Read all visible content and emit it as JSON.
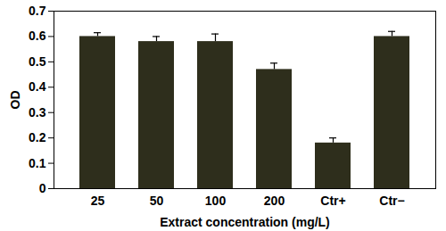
{
  "chart_data": {
    "type": "bar",
    "x_label": "Extract concentration (mg/L)",
    "y_label": "OD",
    "categories": [
      "25",
      "50",
      "100",
      "200",
      "Ctr+",
      "Ctr−"
    ],
    "values": [
      0.6,
      0.58,
      0.58,
      0.47,
      0.18,
      0.6
    ],
    "errors": [
      0.015,
      0.02,
      0.03,
      0.025,
      0.02,
      0.02
    ],
    "color": "#2e2e1c",
    "ylim": [
      0,
      0.7
    ],
    "yticks": [
      0,
      0.1,
      0.2,
      0.3,
      0.4,
      0.5,
      0.6,
      0.7
    ],
    "grid": false
  }
}
